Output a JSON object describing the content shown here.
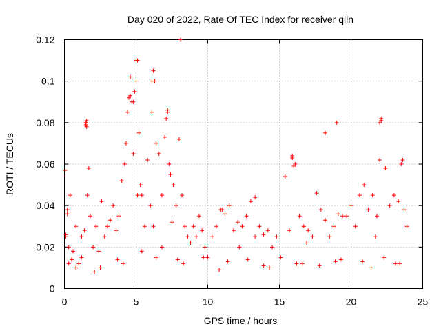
{
  "chart_data": {
    "type": "scatter",
    "title": "Day 020 of 2022, Rate Of TEC Index for receiver qlln",
    "xlabel": "GPS time / hours",
    "ylabel": "ROTI / TECUs",
    "xlim": [
      0,
      25
    ],
    "ylim": [
      0,
      0.12
    ],
    "x_ticks": [
      "0",
      "5",
      "10",
      "15",
      "20",
      "25"
    ],
    "y_ticks": [
      "0",
      "0.02",
      "0.04",
      "0.06",
      "0.08",
      "0.1",
      "0.12"
    ],
    "grid": true,
    "marker": "plus",
    "color": "#ff0000",
    "x": [
      0.05,
      0.1,
      0.2,
      0.3,
      0.4,
      0.5,
      0.6,
      0.8,
      1.0,
      1.2,
      1.4,
      1.5,
      1.55,
      1.6,
      1.7,
      1.8,
      2.0,
      2.2,
      2.4,
      2.6,
      2.8,
      3.0,
      3.2,
      3.4,
      3.6,
      3.8,
      4.0,
      4.2,
      4.3,
      4.4,
      4.5,
      4.6,
      4.7,
      4.8,
      4.9,
      5.0,
      5.1,
      5.2,
      5.3,
      5.4,
      5.6,
      5.8,
      6.0,
      6.1,
      6.2,
      6.3,
      6.4,
      6.6,
      6.8,
      7.0,
      7.1,
      7.2,
      7.3,
      7.4,
      7.6,
      7.8,
      8.0,
      8.2,
      8.4,
      8.6,
      8.8,
      9.0,
      9.2,
      9.4,
      9.6,
      9.8,
      10.0,
      10.3,
      10.6,
      10.9,
      11.2,
      11.5,
      11.8,
      12.1,
      12.4,
      12.7,
      13.0,
      13.3,
      13.6,
      13.9,
      14.2,
      14.5,
      14.8,
      15.1,
      15.4,
      15.7,
      15.9,
      16.1,
      16.4,
      16.7,
      17.0,
      17.3,
      17.6,
      17.9,
      18.2,
      18.5,
      18.8,
      19.1,
      19.4,
      19.7,
      20.0,
      20.3,
      20.6,
      20.9,
      21.2,
      21.5,
      21.8,
      22.0,
      22.1,
      22.4,
      22.7,
      23.0,
      23.3,
      23.5,
      23.7,
      23.9,
      0.3,
      1.2,
      2.5,
      3.7,
      5.4,
      6.8,
      8.3,
      9.7,
      11.4,
      12.8,
      14.3,
      16.2,
      17.8,
      19.3,
      20.8,
      22.3,
      23.4,
      0.8,
      2.1,
      4.1,
      6.4,
      7.9,
      10.8,
      13.9,
      16.6,
      18.9,
      21.4,
      23.1,
      0.2,
      1.5,
      1.55,
      4.6,
      4.8,
      5.0,
      6.1,
      7.2,
      8.1,
      11.0,
      13.3,
      15.9,
      16.0,
      18.2,
      19.0,
      22.0,
      22.1,
      23.6,
      0.1,
      5.1,
      6.2,
      7.5,
      12.2,
      16.9,
      21.7
    ],
    "y": [
      0.057,
      0.025,
      0.036,
      0.02,
      0.045,
      0.014,
      0.018,
      0.03,
      0.012,
      0.025,
      0.028,
      0.08,
      0.078,
      0.045,
      0.058,
      0.035,
      0.02,
      0.03,
      0.018,
      0.042,
      0.025,
      0.03,
      0.033,
      0.04,
      0.028,
      0.035,
      0.052,
      0.06,
      0.07,
      0.085,
      0.092,
      0.102,
      0.09,
      0.065,
      0.095,
      0.1,
      0.11,
      0.075,
      0.05,
      0.045,
      0.03,
      0.062,
      0.04,
      0.085,
      0.105,
      0.1,
      0.07,
      0.065,
      0.045,
      0.073,
      0.082,
      0.085,
      0.06,
      0.055,
      0.05,
      0.04,
      0.072,
      0.045,
      0.03,
      0.025,
      0.022,
      0.03,
      0.025,
      0.035,
      0.028,
      0.02,
      0.015,
      0.025,
      0.03,
      0.038,
      0.036,
      0.04,
      0.028,
      0.032,
      0.03,
      0.035,
      0.042,
      0.025,
      0.03,
      0.026,
      0.028,
      0.02,
      0.025,
      0.015,
      0.054,
      0.028,
      0.063,
      0.06,
      0.035,
      0.03,
      0.028,
      0.025,
      0.046,
      0.038,
      0.033,
      0.025,
      0.03,
      0.036,
      0.035,
      0.035,
      0.04,
      0.03,
      0.045,
      0.05,
      0.038,
      0.045,
      0.035,
      0.062,
      0.082,
      0.058,
      0.04,
      0.045,
      0.042,
      0.06,
      0.038,
      0.03,
      0.012,
      0.015,
      0.01,
      0.014,
      0.018,
      0.02,
      0.012,
      0.015,
      0.013,
      0.014,
      0.01,
      0.012,
      0.011,
      0.014,
      0.013,
      0.015,
      0.012,
      0.01,
      0.008,
      0.012,
      0.015,
      0.014,
      0.009,
      0.011,
      0.012,
      0.013,
      0.01,
      0.012,
      0.038,
      0.079,
      0.081,
      0.093,
      0.09,
      0.11,
      0.1,
      0.086,
      0.12,
      0.038,
      0.044,
      0.064,
      0.059,
      0.075,
      0.08,
      0.08,
      0.081,
      0.062,
      0.026,
      0.045,
      0.03,
      0.032,
      0.02,
      0.022,
      0.025
    ]
  }
}
